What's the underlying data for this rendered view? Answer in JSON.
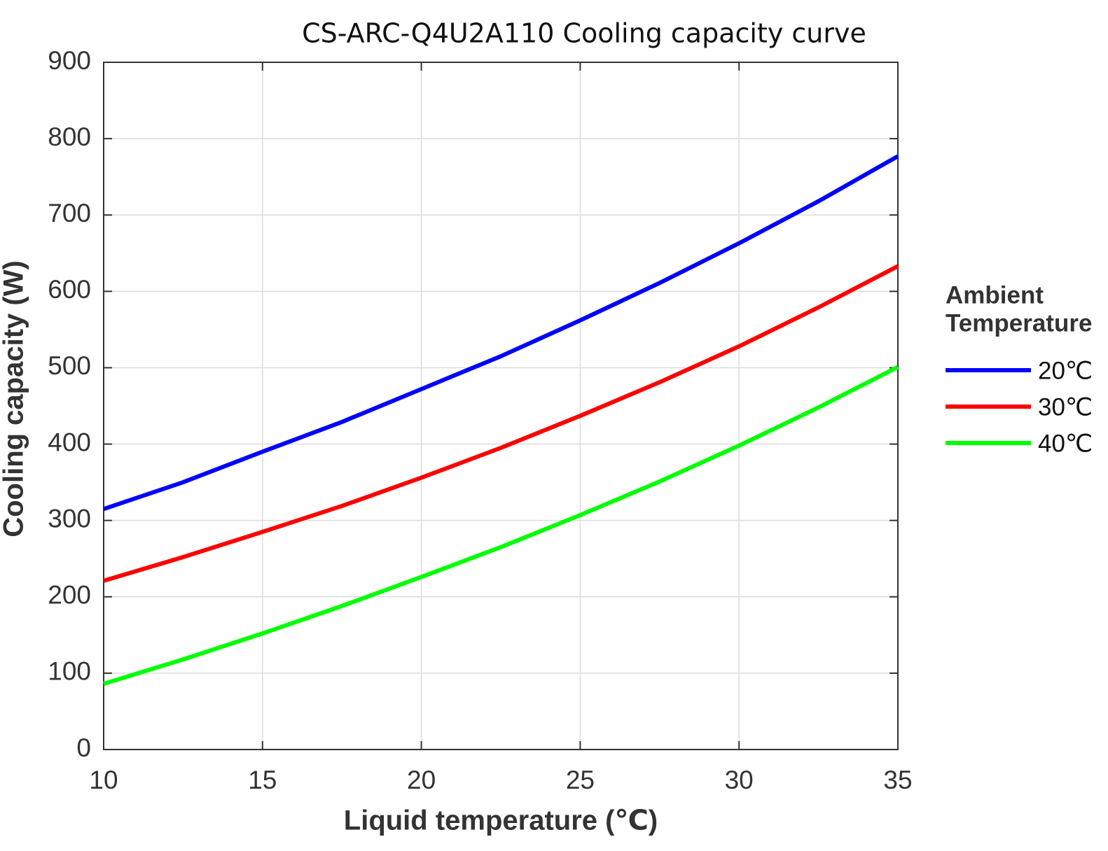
{
  "chart_data": {
    "type": "line",
    "title": "CS-ARC-Q4U2A110 Cooling capacity curve",
    "x_label": "Liquid temperature (℃)",
    "y_label": "Cooling capacity (W)",
    "legend_title": [
      "Ambient",
      "Temperature"
    ],
    "x": [
      10,
      12.5,
      15,
      17.5,
      20,
      22.5,
      25,
      27.5,
      30,
      32.5,
      35
    ],
    "series": [
      {
        "name": "20℃",
        "color": "#0000ff",
        "values": [
          315,
          350,
          390,
          429,
          472,
          515,
          562,
          611,
          663,
          718,
          777
        ]
      },
      {
        "name": "30℃",
        "color": "#ff0000",
        "values": [
          221,
          252,
          285,
          319,
          356,
          395,
          437,
          481,
          528,
          579,
          633
        ]
      },
      {
        "name": "40℃",
        "color": "#00ff00",
        "values": [
          86,
          118,
          152,
          188,
          226,
          265,
          307,
          351,
          398,
          448,
          501
        ]
      }
    ],
    "xlim": [
      10,
      35
    ],
    "xticks": [
      10,
      15,
      20,
      25,
      30,
      35
    ],
    "ylim": [
      0,
      900
    ],
    "yticks": [
      0,
      100,
      200,
      300,
      400,
      500,
      600,
      700,
      800,
      900
    ],
    "grid": true,
    "legend": "right"
  }
}
